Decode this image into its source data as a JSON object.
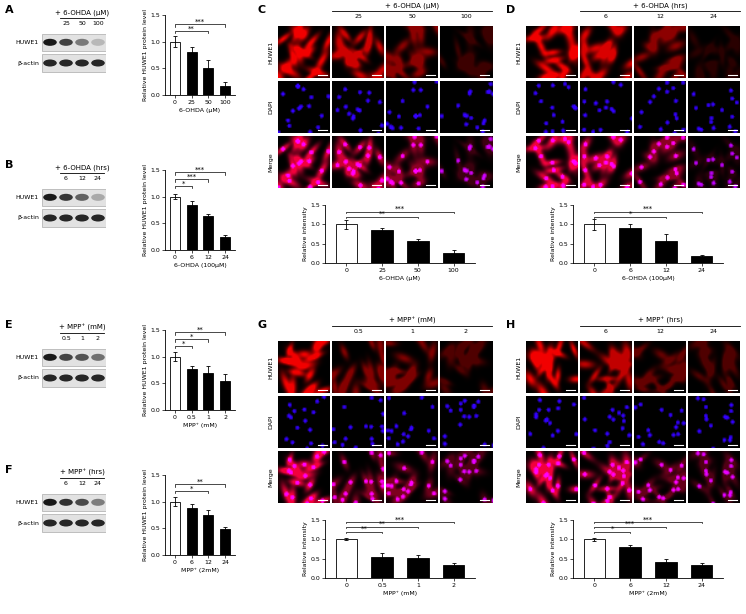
{
  "chart_data": [
    {
      "type": "bar",
      "panel": "A",
      "treatment": "+ 6-OHDA (μM)",
      "treatment_levels": [
        "25",
        "50",
        "100"
      ],
      "blot_rows": [
        "HUWE1",
        "β-actin"
      ],
      "categories": [
        "0",
        "25",
        "50",
        "100"
      ],
      "values": [
        1.0,
        0.8,
        0.5,
        0.17
      ],
      "errors": [
        0.1,
        0.1,
        0.15,
        0.07
      ],
      "colors": [
        "#ffffff",
        "#000000",
        "#000000",
        "#000000"
      ],
      "xlabel": "6-OHDA (μM)",
      "ylabel": "Relative HUWE1 protein level",
      "ylim": [
        0,
        1.5
      ],
      "yticks": [
        {
          "value": 0,
          "label": "0.0"
        },
        0.5,
        {
          "value": 1,
          "label": "1.0"
        },
        1.5
      ],
      "annotations": [
        {
          "from": 0,
          "to": 2,
          "label": "**"
        },
        {
          "from": 0,
          "to": 3,
          "label": "***"
        }
      ]
    },
    {
      "type": "bar",
      "panel": "B",
      "treatment": "+ 6-OHDA (hrs)",
      "treatment_levels": [
        "6",
        "12",
        "24"
      ],
      "blot_rows": [
        "HUWE1",
        "β-actin"
      ],
      "categories": [
        "0",
        "6",
        "12",
        "24"
      ],
      "values": [
        1.0,
        0.85,
        0.63,
        0.25
      ],
      "errors": [
        0.05,
        0.07,
        0.05,
        0.04
      ],
      "colors": [
        "#ffffff",
        "#000000",
        "#000000",
        "#000000"
      ],
      "xlabel": "6-OHDA (100μM)",
      "ylabel": "Relative HUWE1 protein level",
      "ylim": [
        0,
        1.5
      ],
      "yticks": [
        {
          "value": 0,
          "label": "0.0"
        },
        0.5,
        {
          "value": 1,
          "label": "1.0"
        },
        1.5
      ],
      "annotations": [
        {
          "from": 0,
          "to": 1,
          "label": "*"
        },
        {
          "from": 0,
          "to": 2,
          "label": "***"
        },
        {
          "from": 0,
          "to": 3,
          "label": "***"
        }
      ]
    },
    {
      "type": "bar",
      "panel": "C",
      "treatment": "+ 6-OHDA (μM)",
      "treatment_levels": [
        "25",
        "50",
        "100"
      ],
      "channels": [
        "HUWE1",
        "DAPI",
        "Merge"
      ],
      "categories": [
        "0",
        "25",
        "50",
        "100"
      ],
      "values": [
        1.0,
        0.85,
        0.58,
        0.25
      ],
      "errors": [
        0.12,
        0.05,
        0.05,
        0.08
      ],
      "colors": [
        "#ffffff",
        "#000000",
        "#000000",
        "#000000"
      ],
      "xlabel": "6-OHDA (μM)",
      "ylabel": "Relative intensity",
      "ylim": [
        0,
        1.5
      ],
      "yticks": [
        {
          "value": 0,
          "label": "0.0"
        },
        0.5,
        {
          "value": 1,
          "label": "1.0"
        },
        1.5
      ],
      "annotations": [
        {
          "from": 0,
          "to": 2,
          "label": "**"
        },
        {
          "from": 0,
          "to": 3,
          "label": "***"
        }
      ]
    },
    {
      "type": "bar",
      "panel": "D",
      "treatment": "+ 6-OHDA (hrs)",
      "treatment_levels": [
        "6",
        "12",
        "24"
      ],
      "channels": [
        "HUWE1",
        "DAPI",
        "Merge"
      ],
      "categories": [
        "0",
        "6",
        "12",
        "24"
      ],
      "values": [
        1.0,
        0.9,
        0.58,
        0.17
      ],
      "errors": [
        0.15,
        0.12,
        0.18,
        0.03
      ],
      "colors": [
        "#ffffff",
        "#000000",
        "#000000",
        "#000000"
      ],
      "xlabel": "6-OHDA (100μM)",
      "ylabel": "Relative intensity",
      "ylim": [
        0,
        1.5
      ],
      "yticks": [
        {
          "value": 0,
          "label": "0.0"
        },
        0.5,
        {
          "value": 1,
          "label": "1.0"
        },
        1.5
      ],
      "annotations": [
        {
          "from": 0,
          "to": 2,
          "label": "*"
        },
        {
          "from": 0,
          "to": 3,
          "label": "***"
        }
      ]
    },
    {
      "type": "bar",
      "panel": "E",
      "treatment": "+ MPP⁺ (mM)",
      "treatment_levels": [
        "0.5",
        "1",
        "2"
      ],
      "blot_rows": [
        "HUWE1",
        "β-actin"
      ],
      "categories": [
        "0",
        "0.5",
        "1",
        "2"
      ],
      "values": [
        1.0,
        0.77,
        0.7,
        0.55
      ],
      "errors": [
        0.08,
        0.05,
        0.12,
        0.12
      ],
      "colors": [
        "#ffffff",
        "#000000",
        "#000000",
        "#000000"
      ],
      "xlabel": "MPP⁺ (mM)",
      "ylabel": "Relative HUWE1 protein level",
      "ylim": [
        0,
        1.5
      ],
      "yticks": [
        {
          "value": 0,
          "label": "0.0"
        },
        0.5,
        {
          "value": 1,
          "label": "1.0"
        },
        1.5
      ],
      "annotations": [
        {
          "from": 0,
          "to": 1,
          "label": "*"
        },
        {
          "from": 0,
          "to": 2,
          "label": "*"
        },
        {
          "from": 0,
          "to": 3,
          "label": "**"
        }
      ]
    },
    {
      "type": "bar",
      "panel": "F",
      "treatment": "+ MPP⁺ (hrs)",
      "treatment_levels": [
        "6",
        "12",
        "24"
      ],
      "blot_rows": [
        "HUWE1",
        "β-actin"
      ],
      "categories": [
        "0",
        "6",
        "12",
        "24"
      ],
      "values": [
        1.0,
        0.88,
        0.75,
        0.48
      ],
      "errors": [
        0.08,
        0.07,
        0.1,
        0.05
      ],
      "colors": [
        "#ffffff",
        "#000000",
        "#000000",
        "#000000"
      ],
      "xlabel": "MPP⁺ (2mM)",
      "ylabel": "Relative HUWE1 protein level",
      "ylim": [
        0,
        1.5
      ],
      "yticks": [
        {
          "value": 0,
          "label": "0.0"
        },
        0.5,
        {
          "value": 1,
          "label": "1.0"
        },
        1.5
      ],
      "annotations": [
        {
          "from": 0,
          "to": 2,
          "label": "*"
        },
        {
          "from": 0,
          "to": 3,
          "label": "**"
        }
      ]
    },
    {
      "type": "bar",
      "panel": "G",
      "treatment": "+ MPP⁺ (mM)",
      "treatment_levels": [
        "0.5",
        "1",
        "2"
      ],
      "channels": [
        "HUWE1",
        "DAPI",
        "Merge"
      ],
      "categories": [
        "0",
        "0.5",
        "1",
        "2"
      ],
      "values": [
        1.0,
        0.55,
        0.52,
        0.33
      ],
      "errors": [
        0.03,
        0.1,
        0.08,
        0.05
      ],
      "colors": [
        "#ffffff",
        "#000000",
        "#000000",
        "#000000"
      ],
      "xlabel": "MPP⁺ (mM)",
      "ylabel": "Relative intensity",
      "ylim": [
        0,
        1.5
      ],
      "yticks": [
        {
          "value": 0,
          "label": "0.0"
        },
        0.5,
        {
          "value": 1,
          "label": "1.0"
        },
        1.5
      ],
      "annotations": [
        {
          "from": 0,
          "to": 1,
          "label": "**"
        },
        {
          "from": 0,
          "to": 2,
          "label": "**"
        },
        {
          "from": 0,
          "to": 3,
          "label": "***"
        }
      ]
    },
    {
      "type": "bar",
      "panel": "H",
      "treatment": "+ MPP⁺ (hrs)",
      "treatment_levels": [
        "6",
        "12",
        "24"
      ],
      "channels": [
        "HUWE1",
        "DAPI",
        "Merge"
      ],
      "categories": [
        "0",
        "6",
        "12",
        "24"
      ],
      "values": [
        1.0,
        0.8,
        0.42,
        0.33
      ],
      "errors": [
        0.04,
        0.05,
        0.08,
        0.05
      ],
      "colors": [
        "#ffffff",
        "#000000",
        "#000000",
        "#000000"
      ],
      "xlabel": "MPP⁺ (2mM)",
      "ylabel": "Relative intensity",
      "ylim": [
        0,
        1.5
      ],
      "yticks": [
        {
          "value": 0,
          "label": "0.0"
        },
        0.5,
        {
          "value": 1,
          "label": "1.0"
        },
        1.5
      ],
      "annotations": [
        {
          "from": 0,
          "to": 1,
          "label": "*"
        },
        {
          "from": 0,
          "to": 2,
          "label": "***"
        },
        {
          "from": 0,
          "to": 3,
          "label": "***"
        }
      ]
    }
  ]
}
